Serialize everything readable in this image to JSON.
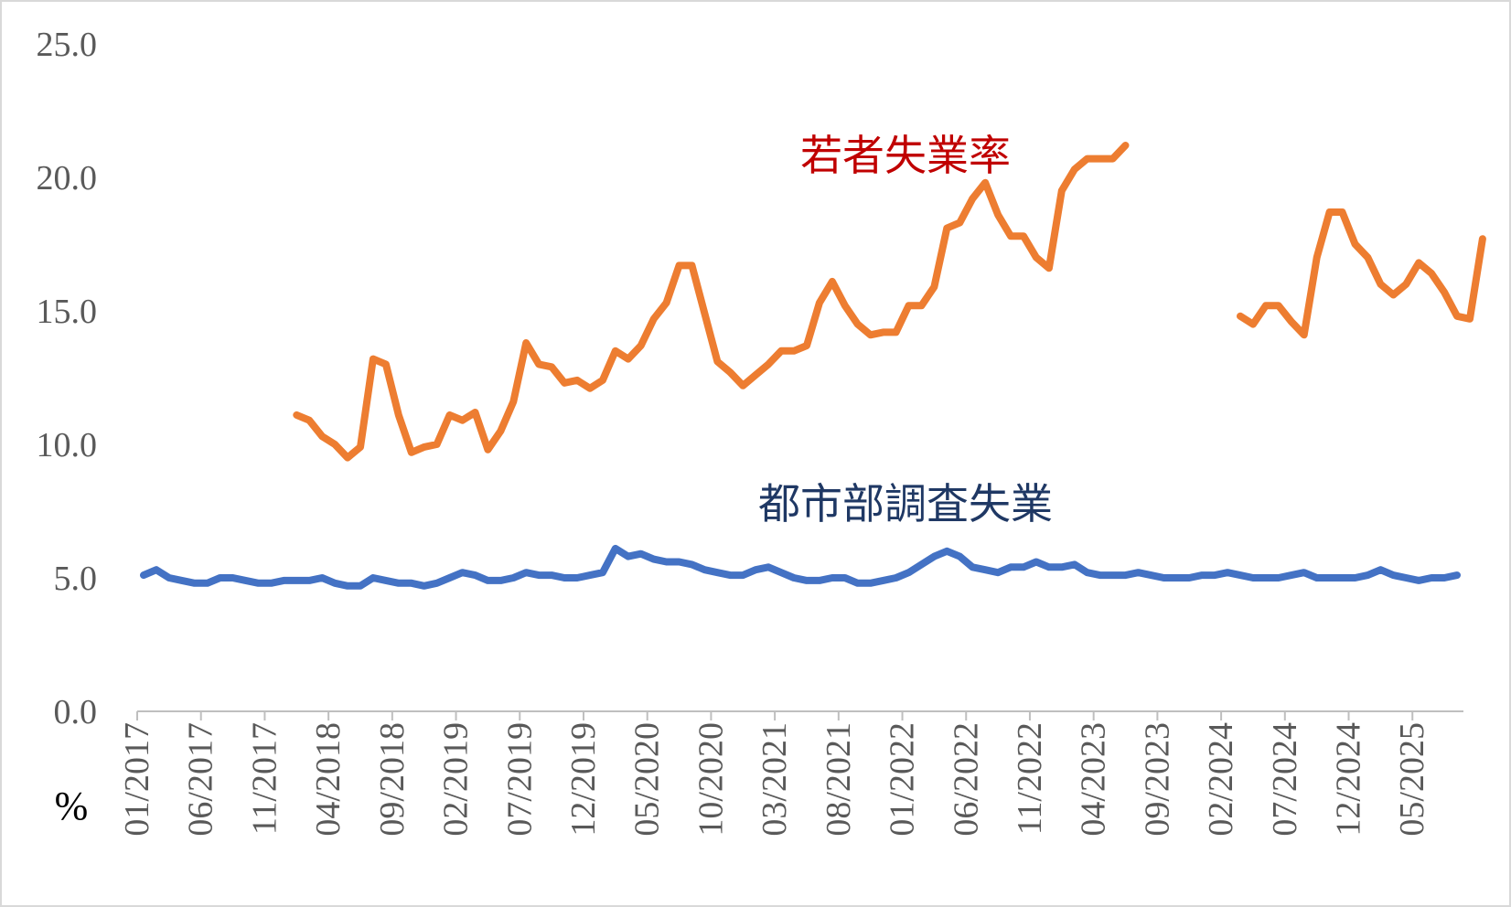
{
  "chart_data": {
    "type": "line",
    "ylabel": "%",
    "ylim": [
      0,
      25
    ],
    "y_ticks": [
      "0.0",
      "5.0",
      "10.0",
      "15.0",
      "20.0",
      "25.0"
    ],
    "x_tick_labels": [
      "01/2017",
      "06/2017",
      "11/2017",
      "04/2018",
      "09/2018",
      "02/2019",
      "07/2019",
      "12/2019",
      "05/2020",
      "10/2020",
      "03/2021",
      "08/2021",
      "01/2022",
      "06/2022",
      "11/2022",
      "04/2023",
      "09/2023",
      "02/2024",
      "07/2024",
      "12/2024",
      "05/2025"
    ],
    "start_month": "01/2017",
    "months": 104,
    "grid": false,
    "legend": "none",
    "series": [
      {
        "name": "若者失業率",
        "color": "#ED7D31",
        "label_color": "#C00000",
        "values": [
          null,
          null,
          null,
          null,
          null,
          null,
          null,
          null,
          null,
          null,
          null,
          null,
          11.1,
          10.9,
          10.3,
          10.0,
          9.5,
          9.9,
          13.2,
          13.0,
          11.1,
          9.7,
          9.9,
          10.0,
          11.1,
          10.9,
          11.2,
          9.8,
          10.5,
          11.6,
          13.8,
          13.0,
          12.9,
          12.3,
          12.4,
          12.1,
          12.4,
          13.5,
          13.2,
          13.7,
          14.7,
          15.3,
          16.7,
          16.7,
          14.9,
          13.1,
          12.7,
          12.2,
          12.6,
          13.0,
          13.5,
          13.5,
          13.7,
          15.3,
          16.1,
          15.2,
          14.5,
          14.1,
          14.2,
          14.2,
          15.2,
          15.2,
          15.9,
          18.1,
          18.3,
          19.2,
          19.8,
          18.6,
          17.8,
          17.8,
          17.0,
          16.6,
          19.5,
          20.3,
          20.7,
          20.7,
          20.7,
          21.2,
          null,
          null,
          null,
          null,
          null,
          null,
          null,
          null,
          14.8,
          14.5,
          15.2,
          15.2,
          14.6,
          14.1,
          17.0,
          18.7,
          18.7,
          17.5,
          17.0,
          16.0,
          15.6,
          16.0,
          16.8,
          16.4,
          15.7,
          14.8,
          14.7,
          17.7
        ]
      },
      {
        "name": "都市部調査失業",
        "color": "#4472C4",
        "label_color": "#1F3864",
        "values": [
          5.1,
          5.3,
          5.0,
          4.9,
          4.8,
          4.8,
          5.0,
          5.0,
          4.9,
          4.8,
          4.8,
          4.9,
          4.9,
          4.9,
          5.0,
          4.8,
          4.7,
          4.7,
          5.0,
          4.9,
          4.8,
          4.8,
          4.7,
          4.8,
          5.0,
          5.2,
          5.1,
          4.9,
          4.9,
          5.0,
          5.2,
          5.1,
          5.1,
          5.0,
          5.0,
          5.1,
          5.2,
          6.1,
          5.8,
          5.9,
          5.7,
          5.6,
          5.6,
          5.5,
          5.3,
          5.2,
          5.1,
          5.1,
          5.3,
          5.4,
          5.2,
          5.0,
          4.9,
          4.9,
          5.0,
          5.0,
          4.8,
          4.8,
          4.9,
          5.0,
          5.2,
          5.5,
          5.8,
          6.0,
          5.8,
          5.4,
          5.3,
          5.2,
          5.4,
          5.4,
          5.6,
          5.4,
          5.4,
          5.5,
          5.2,
          5.1,
          5.1,
          5.1,
          5.2,
          5.1,
          5.0,
          5.0,
          5.0,
          5.1,
          5.1,
          5.2,
          5.1,
          5.0,
          5.0,
          5.0,
          5.1,
          5.2,
          5.0,
          5.0,
          5.0,
          5.0,
          5.1,
          5.3,
          5.1,
          5.0,
          4.9,
          5.0,
          5.0,
          5.1
        ]
      }
    ]
  }
}
